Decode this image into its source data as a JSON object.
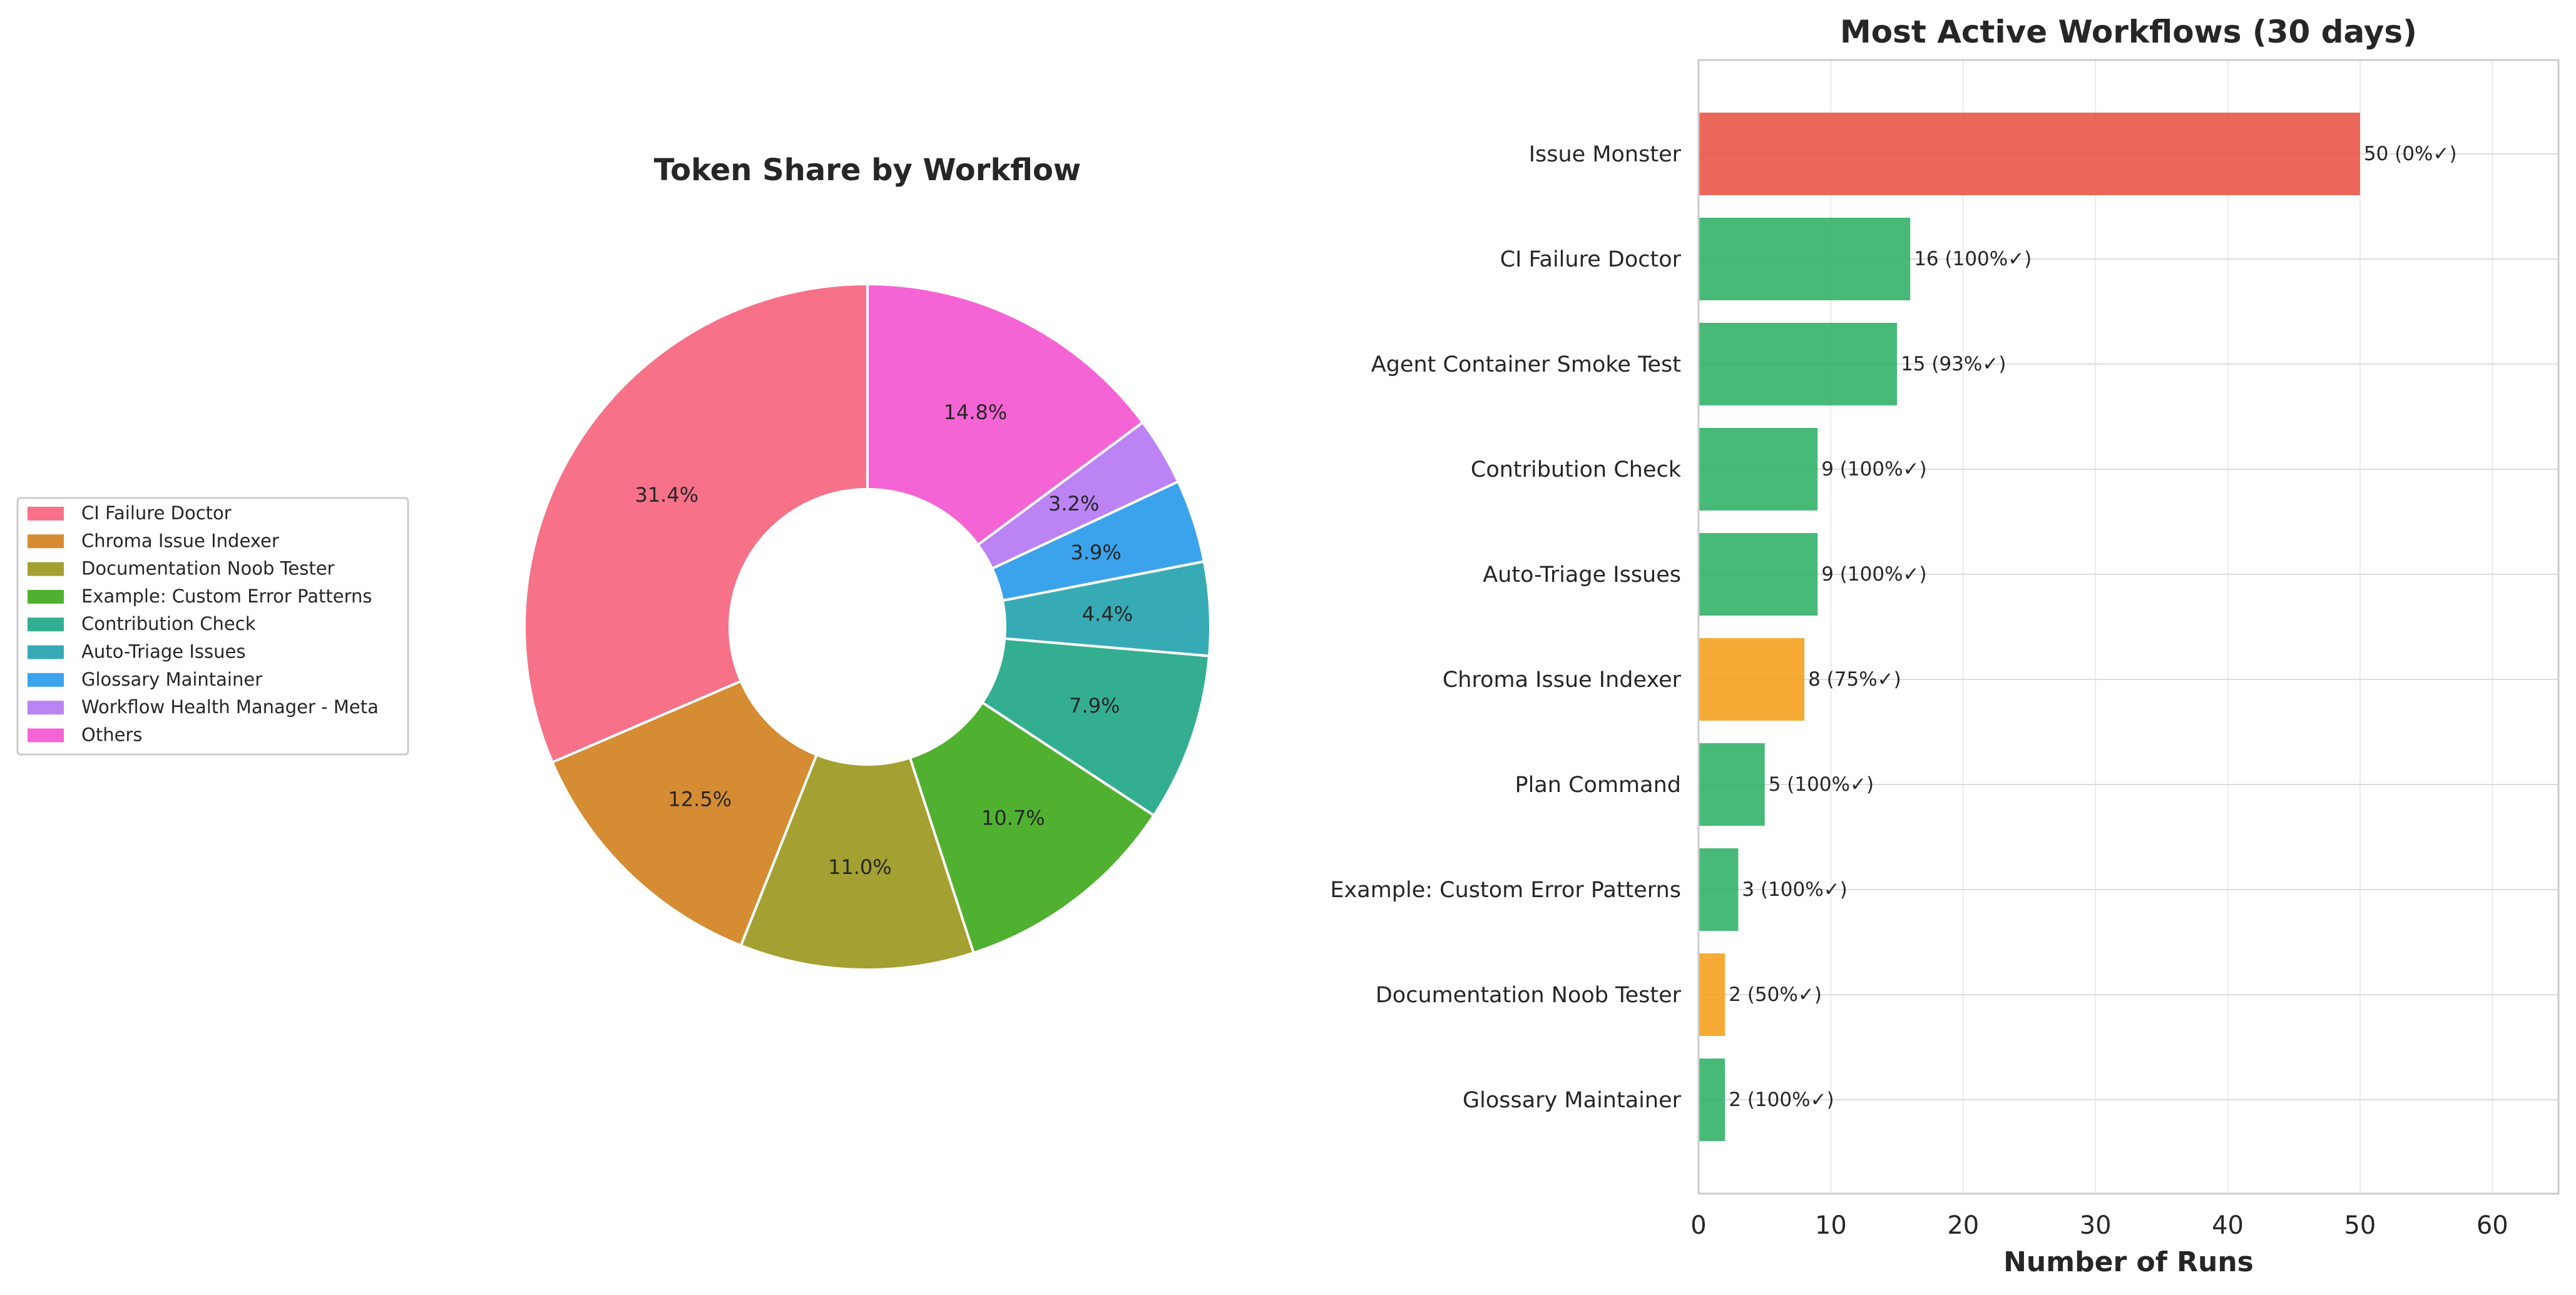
{
  "chart_data": [
    {
      "type": "pie",
      "style": "donut",
      "title": "Token Share by Workflow",
      "legend_placement": "left",
      "slices": [
        {
          "label": "CI Failure Doctor",
          "value": 31.4,
          "value_label": "31.4%",
          "color": "#f77189"
        },
        {
          "label": "Chroma Issue Indexer",
          "value": 12.5,
          "value_label": "12.5%",
          "color": "#d58c32"
        },
        {
          "label": "Documentation Noob Tester",
          "value": 11.0,
          "value_label": "11.0%",
          "color": "#a4a031"
        },
        {
          "label": "Example: Custom Error Patterns",
          "value": 10.7,
          "value_label": "10.7%",
          "color": "#50b131"
        },
        {
          "label": "Contribution Check",
          "value": 7.9,
          "value_label": "7.9%",
          "color": "#34ae91"
        },
        {
          "label": "Auto-Triage Issues",
          "value": 4.4,
          "value_label": "4.4%",
          "color": "#37abb5"
        },
        {
          "label": "Glossary Maintainer",
          "value": 3.9,
          "value_label": "3.9%",
          "color": "#3ba3ec"
        },
        {
          "label": "Workflow Health Manager - Meta",
          "value": 3.2,
          "value_label": "3.2%",
          "color": "#bb83f4"
        },
        {
          "label": "Others",
          "value": 14.8,
          "value_label": "14.8%",
          "color": "#f564d4"
        }
      ]
    },
    {
      "type": "bar",
      "orientation": "horizontal",
      "title": "Most Active Workflows (30 days)",
      "xlabel": "Number of Runs",
      "ylabel": "",
      "xlim": [
        0,
        65
      ],
      "xticks": [
        0,
        10,
        20,
        30,
        40,
        50,
        60
      ],
      "grid": true,
      "bars": [
        {
          "label": "Issue Monster",
          "value": 50,
          "value_label": "50 (0%✓)",
          "color": "#e74c3c"
        },
        {
          "label": "CI Failure Doctor",
          "value": 16,
          "value_label": "16 (100%✓)",
          "color": "#27ae60"
        },
        {
          "label": "Agent Container Smoke Test",
          "value": 15,
          "value_label": "15 (93%✓)",
          "color": "#27ae60"
        },
        {
          "label": "Contribution Check",
          "value": 9,
          "value_label": "9 (100%✓)",
          "color": "#27ae60"
        },
        {
          "label": "Auto-Triage Issues",
          "value": 9,
          "value_label": "9 (100%✓)",
          "color": "#27ae60"
        },
        {
          "label": "Chroma Issue Indexer",
          "value": 8,
          "value_label": "8 (75%✓)",
          "color": "#f39c12"
        },
        {
          "label": "Plan Command",
          "value": 5,
          "value_label": "5 (100%✓)",
          "color": "#27ae60"
        },
        {
          "label": "Example: Custom Error Patterns",
          "value": 3,
          "value_label": "3 (100%✓)",
          "color": "#27ae60"
        },
        {
          "label": "Documentation Noob Tester",
          "value": 2,
          "value_label": "2 (50%✓)",
          "color": "#f39c12"
        },
        {
          "label": "Glossary Maintainer",
          "value": 2,
          "value_label": "2 (100%✓)",
          "color": "#27ae60"
        }
      ]
    }
  ]
}
